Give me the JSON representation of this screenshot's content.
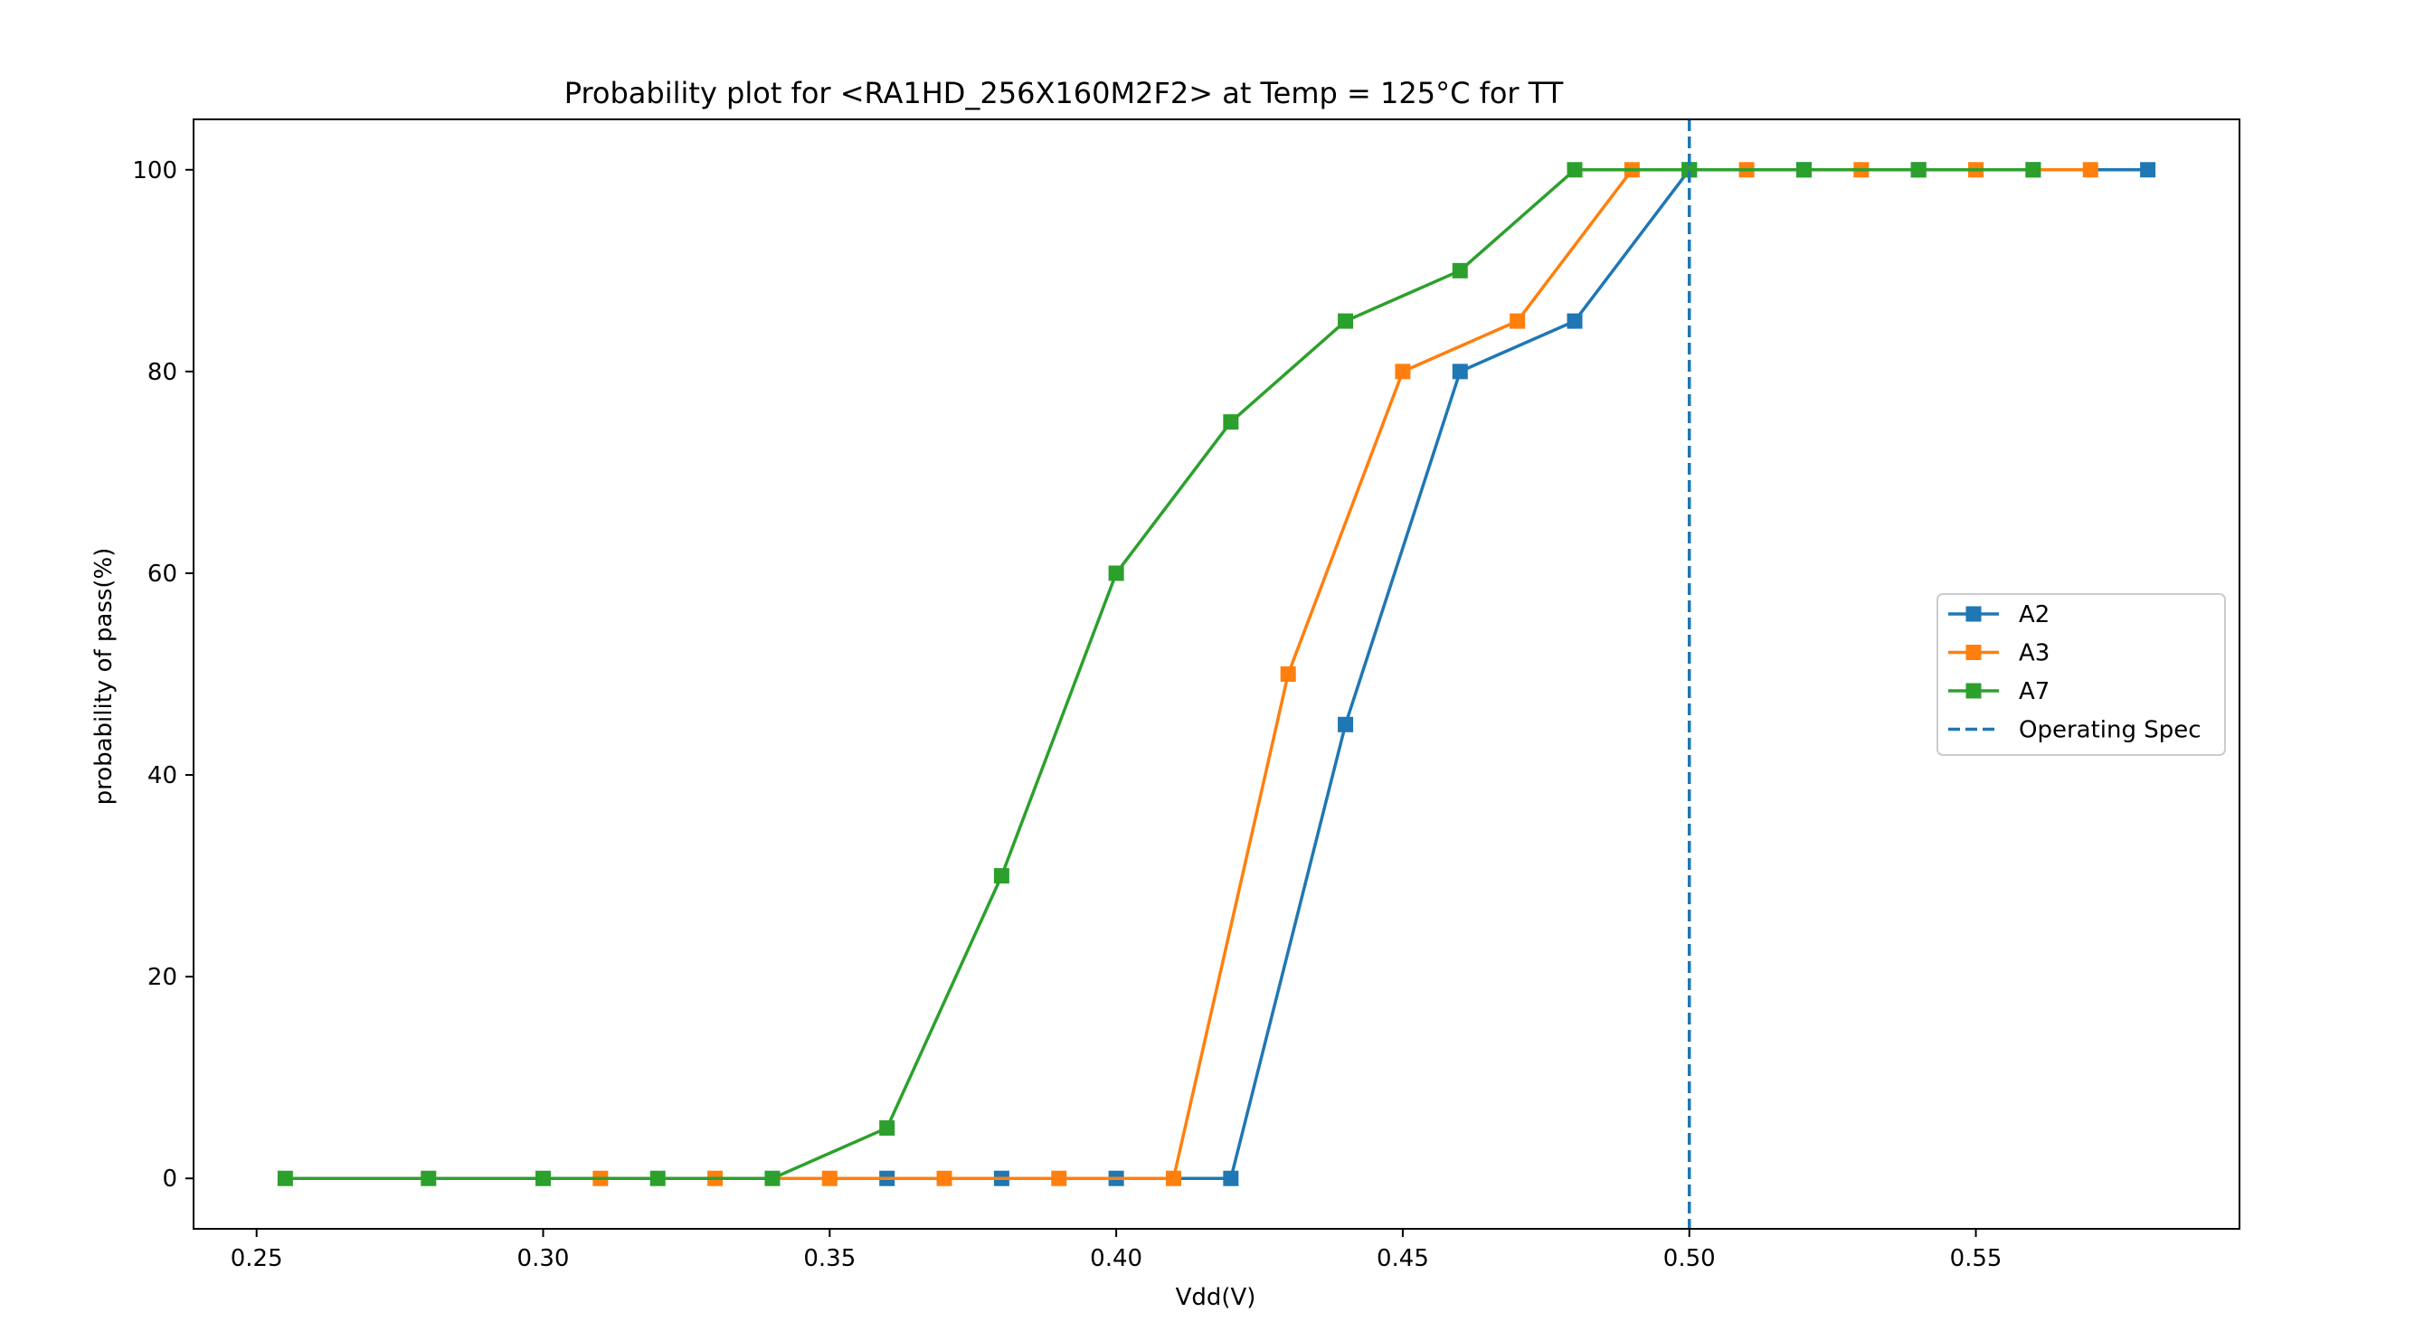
{
  "chart_data": {
    "type": "line",
    "title": "Probability plot for <RA1HD_256X160M2F2> at Temp = 125°C for TT",
    "xlabel": "Vdd(V)",
    "ylabel": "probability of pass(%)",
    "xlim": [
      0.239,
      0.596
    ],
    "ylim": [
      -5,
      105
    ],
    "x_ticks": [
      0.25,
      0.3,
      0.35,
      0.4,
      0.45,
      0.5,
      0.55
    ],
    "x_tick_labels": [
      "0.25",
      "0.30",
      "0.35",
      "0.40",
      "0.45",
      "0.50",
      "0.55"
    ],
    "y_ticks": [
      0,
      20,
      40,
      60,
      80,
      100
    ],
    "y_tick_labels": [
      "0",
      "20",
      "40",
      "60",
      "80",
      "100"
    ],
    "grid": false,
    "legend_position": "center-right",
    "marker": "square",
    "series": [
      {
        "name": "A2",
        "color": "#1f77b4",
        "x": [
          0.36,
          0.38,
          0.4,
          0.42,
          0.44,
          0.46,
          0.48,
          0.5,
          0.52,
          0.54,
          0.56,
          0.58
        ],
        "y": [
          0,
          0,
          0,
          0,
          45,
          80,
          85,
          100,
          100,
          100,
          100,
          100
        ]
      },
      {
        "name": "A3",
        "color": "#ff7f0e",
        "x": [
          0.31,
          0.33,
          0.35,
          0.37,
          0.39,
          0.41,
          0.43,
          0.45,
          0.47,
          0.49,
          0.51,
          0.53,
          0.55,
          0.57
        ],
        "y": [
          0,
          0,
          0,
          0,
          0,
          0,
          50,
          80,
          85,
          100,
          100,
          100,
          100,
          100
        ]
      },
      {
        "name": "A7",
        "color": "#2ca02c",
        "x": [
          0.255,
          0.28,
          0.3,
          0.32,
          0.34,
          0.36,
          0.38,
          0.4,
          0.42,
          0.44,
          0.46,
          0.48,
          0.5,
          0.52,
          0.54,
          0.56
        ],
        "y": [
          0,
          0,
          0,
          0,
          0,
          5,
          30,
          60,
          75,
          85,
          90,
          100,
          100,
          100,
          100,
          100
        ]
      }
    ],
    "reference_lines": [
      {
        "name": "Operating Spec",
        "orientation": "vertical",
        "x": 0.5,
        "color": "#1f77b4",
        "style": "dashed"
      }
    ]
  }
}
